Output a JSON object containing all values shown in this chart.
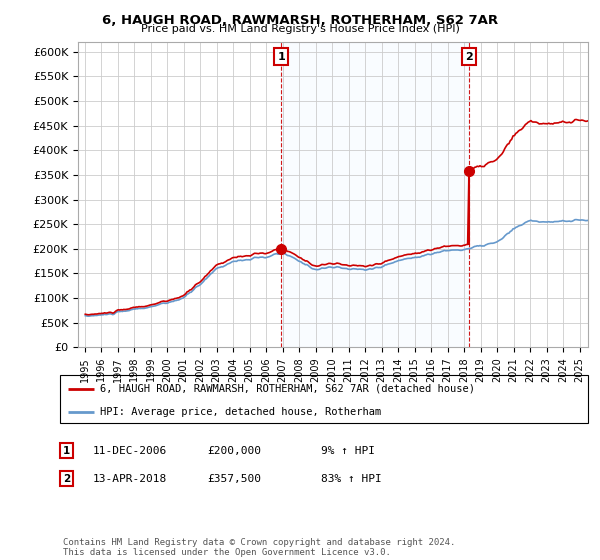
{
  "title": "6, HAUGH ROAD, RAWMARSH, ROTHERHAM, S62 7AR",
  "subtitle": "Price paid vs. HM Land Registry's House Price Index (HPI)",
  "property_label": "6, HAUGH ROAD, RAWMARSH, ROTHERHAM, S62 7AR (detached house)",
  "hpi_label": "HPI: Average price, detached house, Rotherham",
  "sale1_label": "11-DEC-2006",
  "sale1_price": "£200,000",
  "sale1_pct": "9% ↑ HPI",
  "sale2_label": "13-APR-2018",
  "sale2_price": "£357,500",
  "sale2_pct": "83% ↑ HPI",
  "footnote": "Contains HM Land Registry data © Crown copyright and database right 2024.\nThis data is licensed under the Open Government Licence v3.0.",
  "ylim": [
    0,
    620000
  ],
  "yticks": [
    0,
    50000,
    100000,
    150000,
    200000,
    250000,
    300000,
    350000,
    400000,
    450000,
    500000,
    550000,
    600000
  ],
  "line_color_property": "#cc0000",
  "line_color_hpi": "#6699cc",
  "vline_color": "#cc0000",
  "marker_box_color": "#cc0000",
  "grid_color": "#cccccc",
  "shade_color": "#ddeeff",
  "background_color": "#ffffff",
  "sale1_x": 2006.917,
  "sale2_x": 2018.292
}
